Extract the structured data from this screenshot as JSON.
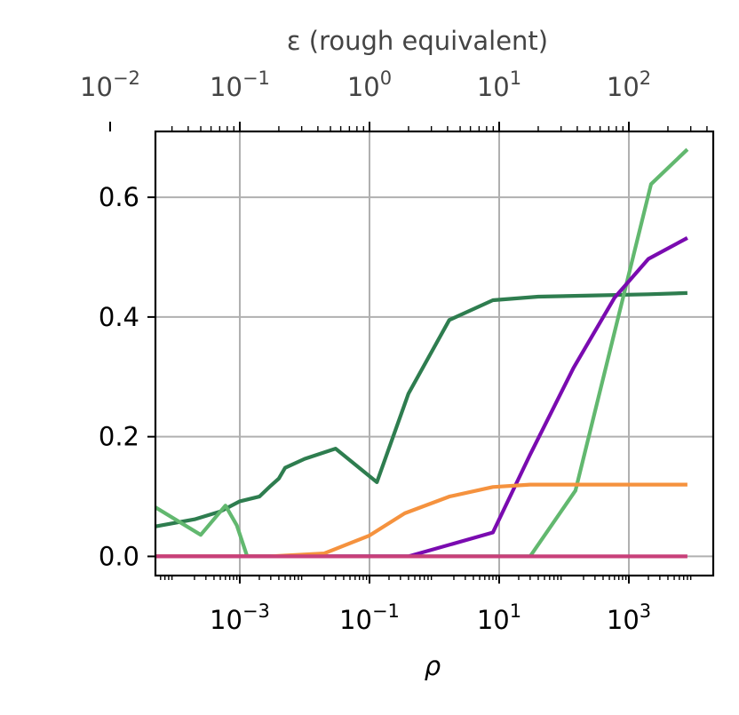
{
  "chart_data": {
    "type": "line",
    "xscale": "log",
    "xlabel": "ρ",
    "x_ticks": [
      {
        "base": "10",
        "exp": "−3",
        "value": 0.001
      },
      {
        "base": "10",
        "exp": "−1",
        "value": 0.1
      },
      {
        "base": "10",
        "exp": "1",
        "value": 10
      },
      {
        "base": "10",
        "exp": "3",
        "value": 1000
      }
    ],
    "xlim": [
      5e-05,
      20000
    ],
    "ylabel": "",
    "ylim": [
      -0.032,
      0.71
    ],
    "y_ticks": [
      {
        "label": "0.0",
        "value": 0
      },
      {
        "label": "0.2",
        "value": 0.2
      },
      {
        "label": "0.4",
        "value": 0.4
      },
      {
        "label": "0.6",
        "value": 0.6
      }
    ],
    "top_axis": {
      "label": "ε (rough equivalent)",
      "scale": "log",
      "ticks": [
        {
          "base": "10",
          "exp": "−2",
          "value": 0.01
        },
        {
          "base": "10",
          "exp": "−1",
          "value": 0.1
        },
        {
          "base": "10",
          "exp": "0",
          "value": 1
        },
        {
          "base": "10",
          "exp": "1",
          "value": 10
        },
        {
          "base": "10",
          "exp": "2",
          "value": 100
        }
      ]
    },
    "grid": true,
    "legend": "none",
    "series": [
      {
        "color": "#2e7d4f",
        "x": [
          5e-05,
          0.0002,
          0.0005,
          0.001,
          0.002,
          0.003,
          0.004,
          0.005,
          0.01,
          0.03,
          0.13,
          0.4,
          1.7,
          8,
          40,
          300,
          2000,
          8000
        ],
        "y": [
          0.05,
          0.062,
          0.075,
          0.092,
          0.1,
          0.118,
          0.13,
          0.148,
          0.163,
          0.18,
          0.124,
          0.272,
          0.395,
          0.428,
          0.434,
          0.436,
          0.438,
          0.44
        ]
      },
      {
        "color": "#62b86f",
        "x": [
          5e-05,
          0.00025,
          0.0006,
          0.0009,
          0.0013,
          0.003,
          30,
          150,
          2200,
          8000
        ],
        "y": [
          0.082,
          0.036,
          0.085,
          0.052,
          0.0,
          0.0,
          0.0,
          0.11,
          0.622,
          0.68
        ]
      },
      {
        "color": "#7a0bb0",
        "x": [
          5e-05,
          0.01,
          0.4,
          8,
          30,
          140,
          600,
          2000,
          8000
        ],
        "y": [
          0.0,
          0.0,
          0.0,
          0.04,
          0.17,
          0.315,
          0.432,
          0.497,
          0.532
        ]
      },
      {
        "color": "#f5923e",
        "x": [
          5e-05,
          0.003,
          0.02,
          0.1,
          0.35,
          1.7,
          8,
          30,
          150,
          1000,
          8000
        ],
        "y": [
          0.0,
          0.0,
          0.005,
          0.035,
          0.072,
          0.1,
          0.116,
          0.12,
          0.12,
          0.12,
          0.12
        ]
      },
      {
        "color": "#c8407a",
        "x": [
          5e-05,
          1,
          100,
          8000
        ],
        "y": [
          0.0,
          0.0,
          0.0,
          0.0
        ]
      }
    ]
  }
}
